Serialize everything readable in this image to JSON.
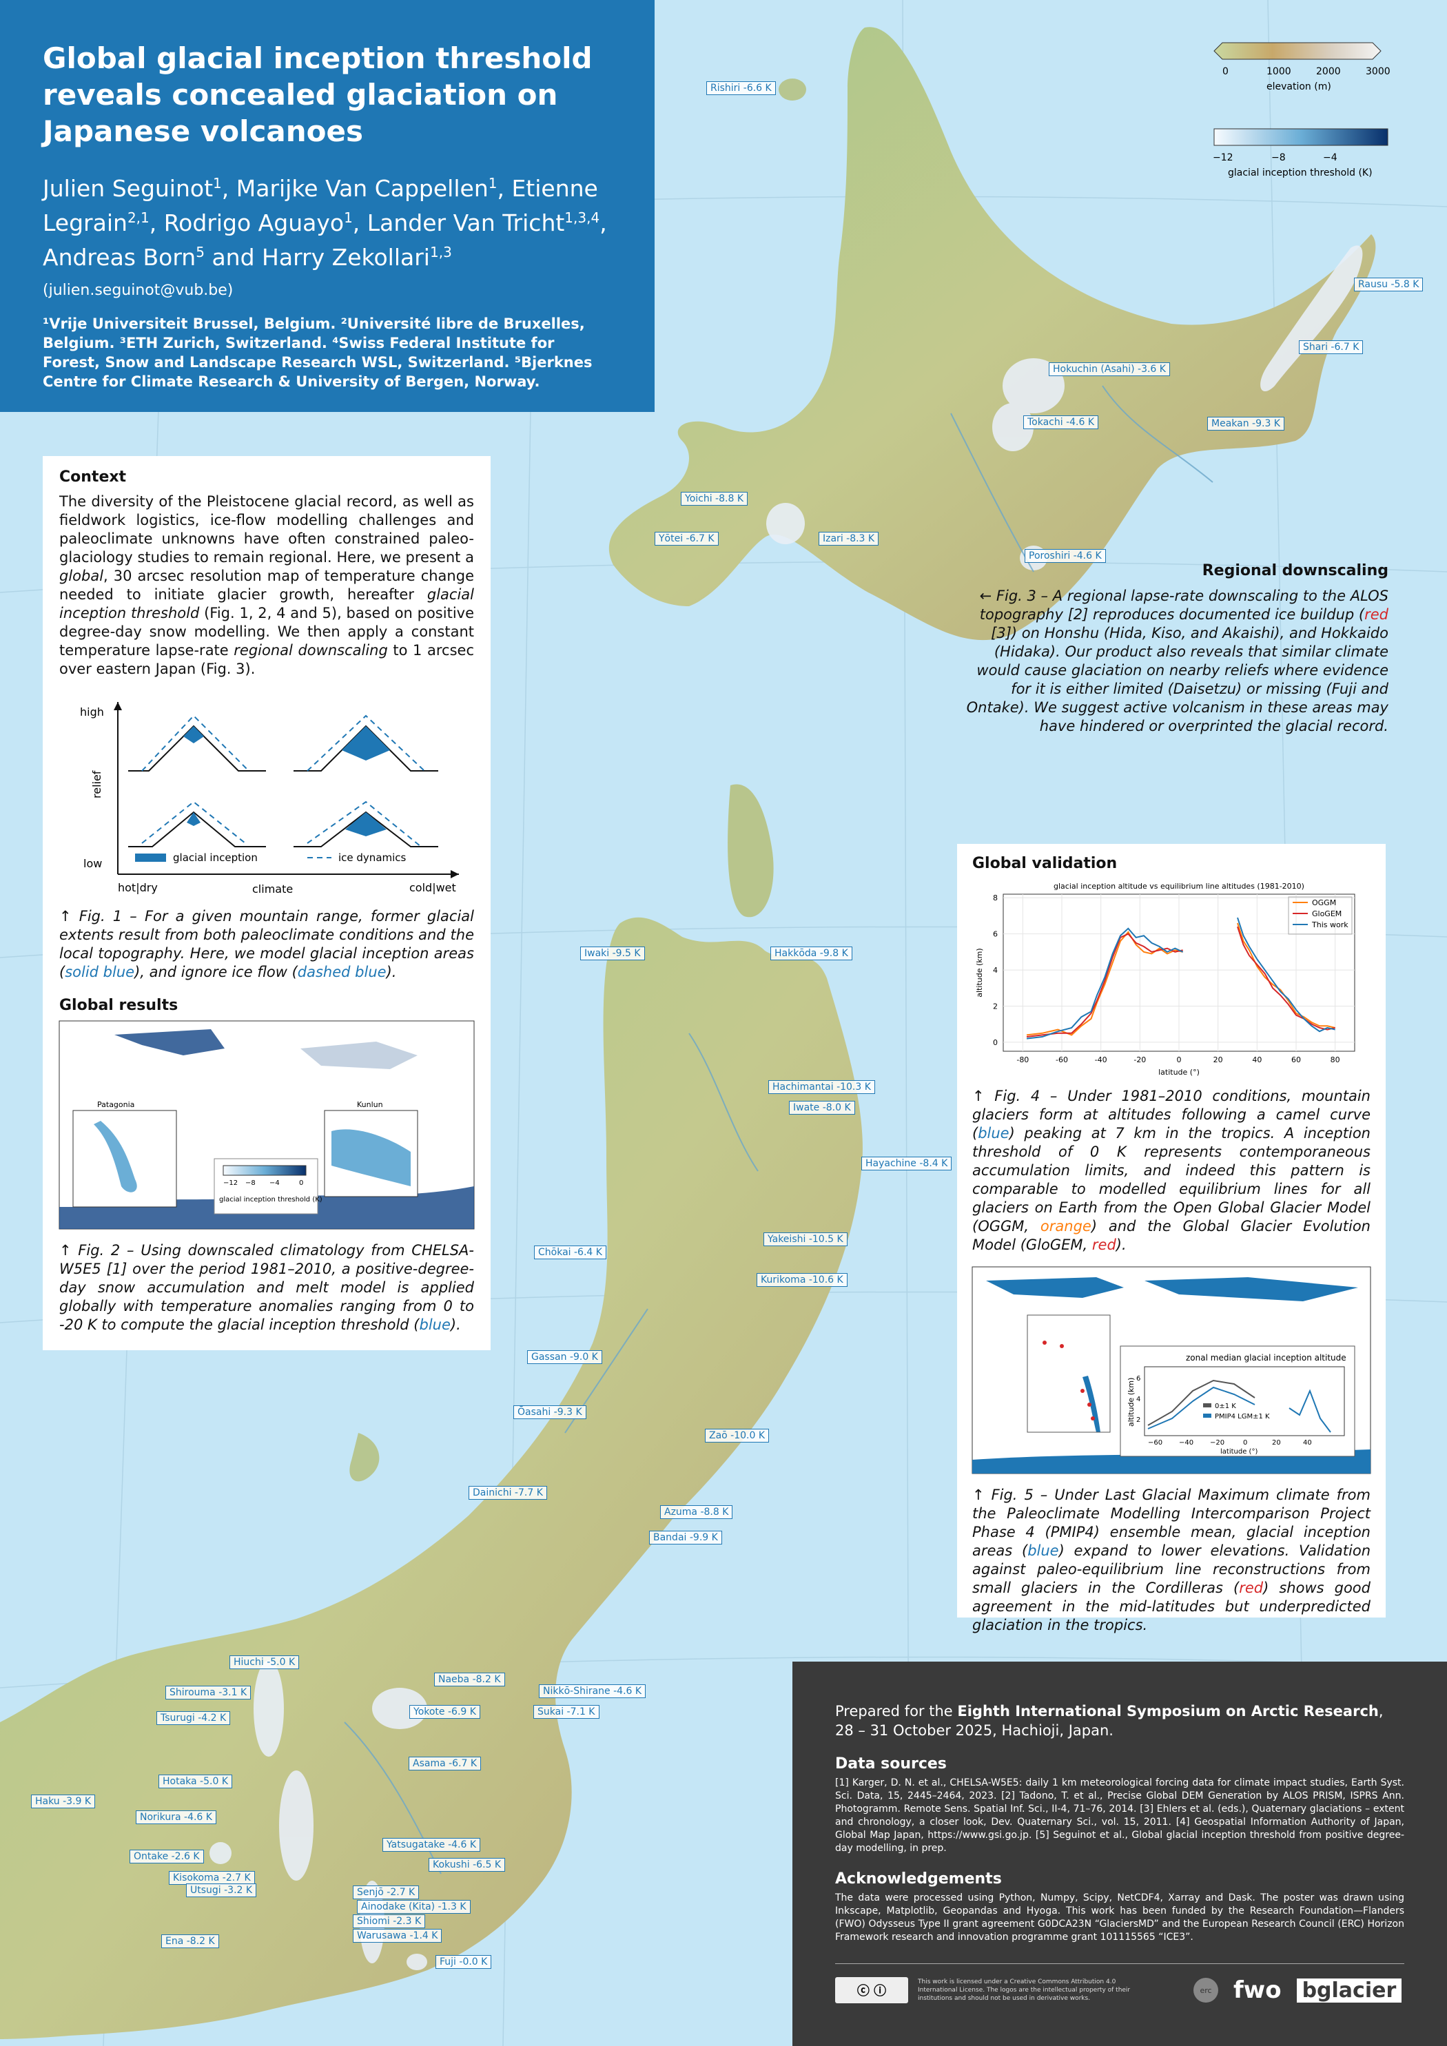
{
  "header": {
    "title": "Global glacial inception threshold reveals concealed glaciation on Japanese volcanoes",
    "authors": [
      {
        "name": "Julien Seguinot",
        "sup": "1"
      },
      {
        "name": "Marijke Van Cappellen",
        "sup": "1"
      },
      {
        "name": "Etienne Legrain",
        "sup": "2,1"
      },
      {
        "name": "Rodrigo Aguayo",
        "sup": "1"
      },
      {
        "name": "Lander Van Tricht",
        "sup": "1,3,4"
      },
      {
        "name": "Andreas Born",
        "sup": "5"
      },
      {
        "name": "Harry Zekollari",
        "sup": "1,3"
      }
    ],
    "email": "(julien.seguinot@vub.be)",
    "affiliations": "¹Vrije Universiteit Brussel, Belgium. ²Université libre de Bruxelles, Belgium. ³ETH Zurich, Switzerland. ⁴Swiss Federal Institute for Forest, Snow and Landscape Research WSL, Switzerland. ⁵Bjerknes Centre for Climate Research & University of Bergen, Norway."
  },
  "legend": {
    "elevation_label": "elevation (m)",
    "elevation_ticks": [
      "0",
      "1000",
      "2000",
      "3000"
    ],
    "threshold_label": "glacial inception threshold (K)",
    "threshold_ticks": [
      "−12",
      "−8",
      "−4"
    ]
  },
  "context": {
    "heading": "Context",
    "p1": "The diversity of the Pleistocene glacial record, as well as fieldwork logistics, ice-flow modelling challenges and paleoclimate unknowns have often constrained paleo-glaciology studies to remain regional. Here, we present a ",
    "p1_em1": "global",
    "p1b": ", 30 arcsec resolution map of temperature change needed to initiate glacier growth, hereafter ",
    "p1_em2": "glacial inception threshold",
    "p1c": " (Fig. 1, 2, 4 and 5), based on positive degree-day snow modelling. We then apply a constant temperature lapse-rate ",
    "p1_em3": "regional downscaling",
    "p1d": " to 1 arcsec over eastern Japan (Fig. 3)."
  },
  "fig1": {
    "y_high": "high",
    "y_low": "low",
    "y_label": "relief",
    "x_left": "hot|dry",
    "x_mid": "climate",
    "x_right": "cold|wet",
    "legend_inception": "glacial inception",
    "legend_dynamics": "ice dynamics",
    "caption_a": "↑ Fig. 1 – For a given mountain range, former glacial extents result from both paleoclimate conditions and the local topography. Here, we model glacial inception areas (",
    "caption_blue1": "solid blue",
    "caption_b": "), and ignore ice flow (",
    "caption_blue2": "dashed blue",
    "caption_c": ")."
  },
  "global_results": {
    "heading": "Global results",
    "inset_left": "Patagonia",
    "inset_right": "Kunlun",
    "cbar_ticks": [
      "−12",
      "−8",
      "−4",
      "0"
    ],
    "cbar_label": "glacial inception threshold (K)",
    "caption_a": "↑ Fig. 2 – Using downscaled climatology from CHELSA-W5E5 [1] over the period 1981–2010, a positive-degree-day snow accumulation and melt model is applied globally with temperature anomalies ranging from 0 to -20 K to compute the glacial inception threshold (",
    "caption_blue": "blue",
    "caption_b": ")."
  },
  "regional": {
    "heading": "Regional downscaling",
    "text_a": "← Fig. 3 – A regional lapse-rate downscaling to the ALOS topography [2] reproduces documented ice buildup (",
    "text_red": "red",
    "text_b": " [3]) on Honshu (Hida, Kiso, and Akaishi), and Hokkaido (Hidaka). Our product also reveals that similar climate would cause glaciation on nearby reliefs where evidence for it is either limited (Daisetzu) or missing (Fuji and Ontake). We suggest active volcanism in these areas may have hindered or overprinted the glacial record."
  },
  "validation": {
    "heading": "Global validation",
    "caption4_a": "↑ Fig. 4 – Under 1981–2010 conditions, mountain glaciers form at altitudes following a camel curve (",
    "caption4_blue": "blue",
    "caption4_b": ") peaking at 7 km in the tropics. A inception threshold of 0 K represents contemporaneous accumulation limits, and indeed this pattern is comparable to modelled equilibrium lines for all glaciers on Earth from the Open Global Glacier Model (OGGM, ",
    "caption4_orange": "orange",
    "caption4_c": ") and the Global Glacier Evolution Model (GloGEM, ",
    "caption4_red": "red",
    "caption4_d": ").",
    "fig5_inset_title": "zonal median glacial inception altitude",
    "fig5_ylabel": "altitude (km)",
    "fig5_xlabel": "latitude (°)",
    "fig5_legend": [
      "0±1 K",
      "PMIP4 LGM±1 K"
    ],
    "fig5_xticks": [
      "−60",
      "−40",
      "−20",
      "0",
      "20",
      "40"
    ],
    "fig5_yticks": [
      "2",
      "4",
      "6"
    ],
    "caption5_a": "↑ Fig. 5 – Under Last Glacial Maximum climate from the Paleoclimate Modelling Intercomparison Project Phase 4 (PMIP4) ensemble mean, glacial inception areas (",
    "caption5_blue": "blue",
    "caption5_b": ") expand to lower elevations. Validation against paleo-equilibrium line reconstructions from small glaciers in the Cordilleras (",
    "caption5_red": "red",
    "caption5_c": ") shows good agreement in the mid-latitudes but underpredicted glaciation in the tropics."
  },
  "chart_data": {
    "type": "line",
    "title": "glacial inception altitude vs equilibrium line altitudes (1981-2010)",
    "xlabel": "latitude (°)",
    "ylabel": "altitude (km)",
    "xlim": [
      -90,
      90
    ],
    "ylim": [
      -0.5,
      8.2
    ],
    "xticks": [
      -80,
      -60,
      -40,
      -20,
      0,
      20,
      40,
      60,
      80
    ],
    "yticks": [
      0,
      2,
      4,
      6,
      8
    ],
    "grid": true,
    "legend_position": "top-right",
    "series": [
      {
        "name": "OGGM",
        "color": "#ff7f0e",
        "x": [
          -78,
          -70,
          -62,
          -55,
          -50,
          -45,
          -42,
          -38,
          -34,
          -30,
          -26,
          -22,
          -18,
          -14,
          -10,
          -6,
          -2,
          2,
          30,
          33,
          36,
          40,
          44,
          48,
          52,
          56,
          60,
          64,
          68,
          72,
          76,
          80
        ],
        "y": [
          0.4,
          0.5,
          0.7,
          0.4,
          0.9,
          1.3,
          2.2,
          3.2,
          4.4,
          5.6,
          6.1,
          5.4,
          5.0,
          4.9,
          5.2,
          4.9,
          5.1,
          5.0,
          6.6,
          5.6,
          5.1,
          4.2,
          3.6,
          3.2,
          2.9,
          2.3,
          1.6,
          1.4,
          1.1,
          0.9,
          0.9,
          0.8
        ]
      },
      {
        "name": "GloGEM",
        "color": "#d62728",
        "x": [
          -78,
          -70,
          -62,
          -55,
          -50,
          -45,
          -42,
          -38,
          -34,
          -30,
          -26,
          -22,
          -18,
          -14,
          -10,
          -6,
          -2,
          2,
          30,
          33,
          36,
          40,
          44,
          48,
          52,
          56,
          60,
          64,
          68,
          72,
          76,
          80
        ],
        "y": [
          0.3,
          0.4,
          0.5,
          0.5,
          1.0,
          1.6,
          2.3,
          3.4,
          4.7,
          5.8,
          6.0,
          5.5,
          5.3,
          5.0,
          5.1,
          5.2,
          5.0,
          5.1,
          6.4,
          5.4,
          4.8,
          4.3,
          3.8,
          3.0,
          2.6,
          2.1,
          1.5,
          1.3,
          1.0,
          0.8,
          0.7,
          0.8
        ]
      },
      {
        "name": "This work",
        "color": "#1f77b4",
        "x": [
          -78,
          -70,
          -62,
          -55,
          -50,
          -45,
          -42,
          -38,
          -34,
          -30,
          -26,
          -22,
          -18,
          -14,
          -10,
          -6,
          -2,
          2,
          30,
          33,
          36,
          40,
          44,
          48,
          52,
          56,
          60,
          64,
          68,
          72,
          76,
          80
        ],
        "y": [
          0.2,
          0.3,
          0.6,
          0.8,
          1.4,
          1.7,
          2.6,
          3.6,
          4.9,
          5.9,
          6.3,
          5.8,
          5.9,
          5.5,
          5.3,
          5.0,
          5.2,
          5.0,
          6.9,
          5.9,
          5.3,
          4.6,
          4.0,
          3.4,
          2.8,
          2.4,
          1.8,
          1.3,
          0.9,
          0.6,
          0.8,
          0.7
        ]
      }
    ]
  },
  "volcanoes": [
    "Rishiri -6.6 K",
    "Rausu -5.8 K",
    "Shari -6.7 K",
    "Hokuchin (Asahi) -3.6 K",
    "Tokachi -4.6 K",
    "Meakan -9.3 K",
    "Yoichi -8.8 K",
    "Yōtei -6.7 K",
    "Izari -8.3 K",
    "Poroshiri -4.6 K",
    "Iwaki -9.5 K",
    "Hakkōda -9.8 K",
    "Hachimantai -10.3 K",
    "Iwate -8.0 K",
    "Hayachine -8.4 K",
    "Yakeishi -10.5 K",
    "Chōkai -6.4 K",
    "Kurikoma -10.6 K",
    "Gassan -9.0 K",
    "Ōasahi -9.3 K",
    "Zaō -10.0 K",
    "Dainichi -7.7 K",
    "Azuma -8.8 K",
    "Bandai -9.9 K",
    "Hiuchi -5.0 K",
    "Naeba -8.2 K",
    "Shirouma -3.1 K",
    "Nikkō-Shirane -4.6 K",
    "Tsurugi -4.2 K",
    "Sukai -7.1 K",
    "Yokote -6.9 K",
    "Asama -6.7 K",
    "Hotaka -5.0 K",
    "Haku -3.9 K",
    "Norikura -4.6 K",
    "Ontake -2.6 K",
    "Yatsugatake -4.6 K",
    "Kokushi -6.5 K",
    "Kisokoma -2.7 K",
    "Utsugi -3.2 K",
    "Senjō -2.7 K",
    "Ainodake (Kita) -1.3 K",
    "Shiomi -2.3 K",
    "Warusawa -1.4 K",
    "Ena -8.2 K",
    "Fuji -0.0 K"
  ],
  "footer": {
    "prep_a": "Prepared for the ",
    "prep_b": "Eighth International Symposium on Arctic Research",
    "prep_c": ", 28 – 31 October 2025, Hachioji, Japan.",
    "data_heading": "Data sources",
    "data_text": "[1] Karger, D. N. et al., CHELSA-W5E5: daily 1 km meteorological forcing data for climate impact studies, Earth Syst. Sci. Data, 15, 2445–2464, 2023. [2] Tadono, T. et al., Precise Global DEM Generation by ALOS PRISM, ISPRS Ann. Photogramm. Remote Sens. Spatial Inf. Sci., II-4, 71–76, 2014. [3] Ehlers et al. (eds.), Quaternary glaciations – extent and chronology, a closer look, Dev. Quaternary Sci., vol. 15, 2011. [4] Geospatial Information Authority of Japan, Global Map Japan, https://www.gsi.go.jp. [5] Seguinot et al., Global glacial inception threshold from positive degree-day modelling, in prep.",
    "ack_heading": "Acknowledgements",
    "ack_text": "The data were processed using Python, Numpy, Scipy, NetCDF4, Xarray and Dask. The poster was drawn using Inkscape, Matplotlib, Geopandas and Hyoga. This work has been funded by the Research Foundation—Flanders (FWO) Odysseus Type II grant agreement G0DCA23N “GlaciersMD” and the European Research Council (ERC) Horizon Framework research and innovation programme grant 101115565 “ICE3”.",
    "license": "This work is licensed under a Creative Commons Attribution 4.0 International License. The logos are the intellectual property of their institutions and should not be used in derivative works.",
    "logo_erc": "erc",
    "logo_fwo": "fwo",
    "logo_bglacier": "bglacier"
  }
}
